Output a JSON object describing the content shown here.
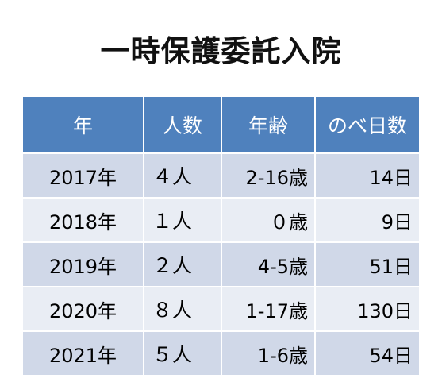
{
  "title": "一時保護委託入院",
  "table": {
    "headers": [
      "年",
      "人数",
      "年齢",
      "のべ日数"
    ],
    "rows": [
      {
        "year": "2017年",
        "count": "４人",
        "age": "2-16歳",
        "days": "14日"
      },
      {
        "year": "2018年",
        "count": "１人",
        "age": "０歳",
        "days": "9日"
      },
      {
        "year": "2019年",
        "count": "２人",
        "age": "4-5歳",
        "days": "51日"
      },
      {
        "year": "2020年",
        "count": "８人",
        "age": "1-17歳",
        "days": "130日"
      },
      {
        "year": "2021年",
        "count": "５人",
        "age": "1-6歳",
        "days": "54日"
      }
    ]
  },
  "colors": {
    "header_bg": "#4f81bd",
    "row_dark": "#d0d8e8",
    "row_light": "#e9edf4"
  }
}
